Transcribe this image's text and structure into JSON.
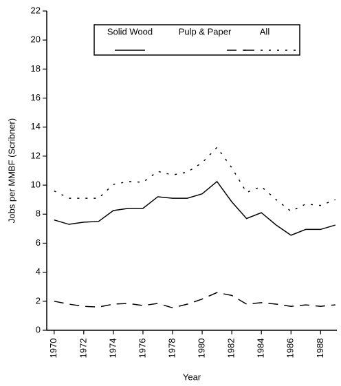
{
  "chart_data": {
    "type": "line",
    "x_label": "Year",
    "y_label": "Jobs per MMBF (Scribner)",
    "x": [
      1970,
      1971,
      1972,
      1973,
      1974,
      1975,
      1976,
      1977,
      1978,
      1979,
      1980,
      1981,
      1982,
      1983,
      1984,
      1985,
      1986,
      1987,
      1988,
      1989
    ],
    "series": [
      {
        "name": "Solid Wood",
        "color": "#000000",
        "dash": "solid",
        "values": [
          7.6,
          7.3,
          7.45,
          7.5,
          8.25,
          8.4,
          8.4,
          9.2,
          9.1,
          9.1,
          9.4,
          10.25,
          8.85,
          7.7,
          8.1,
          7.25,
          6.55,
          6.95,
          6.95,
          7.25
        ]
      },
      {
        "name": "Pulp & Paper",
        "color": "#000000",
        "dash": "long",
        "values": [
          2.0,
          1.8,
          1.65,
          1.6,
          1.8,
          1.85,
          1.7,
          1.85,
          1.55,
          1.8,
          2.15,
          2.6,
          2.4,
          1.8,
          1.9,
          1.8,
          1.65,
          1.75,
          1.65,
          1.75
        ]
      },
      {
        "name": "All",
        "color": "#000000",
        "dash": "dotted",
        "values": [
          9.6,
          9.1,
          9.1,
          9.1,
          10.05,
          10.25,
          10.2,
          10.95,
          10.7,
          10.9,
          11.55,
          12.6,
          11.2,
          9.5,
          9.9,
          9.0,
          8.2,
          8.7,
          8.6,
          9.0
        ]
      }
    ],
    "xlim": [
      1969.5,
      1989.1
    ],
    "xticks": [
      1970,
      1972,
      1974,
      1976,
      1978,
      1980,
      1982,
      1984,
      1986,
      1988
    ],
    "ylim": [
      0,
      22
    ],
    "yticks": [
      0,
      2,
      4,
      6,
      8,
      10,
      12,
      14,
      16,
      18,
      20,
      22
    ],
    "grid": false,
    "legend": "top"
  }
}
